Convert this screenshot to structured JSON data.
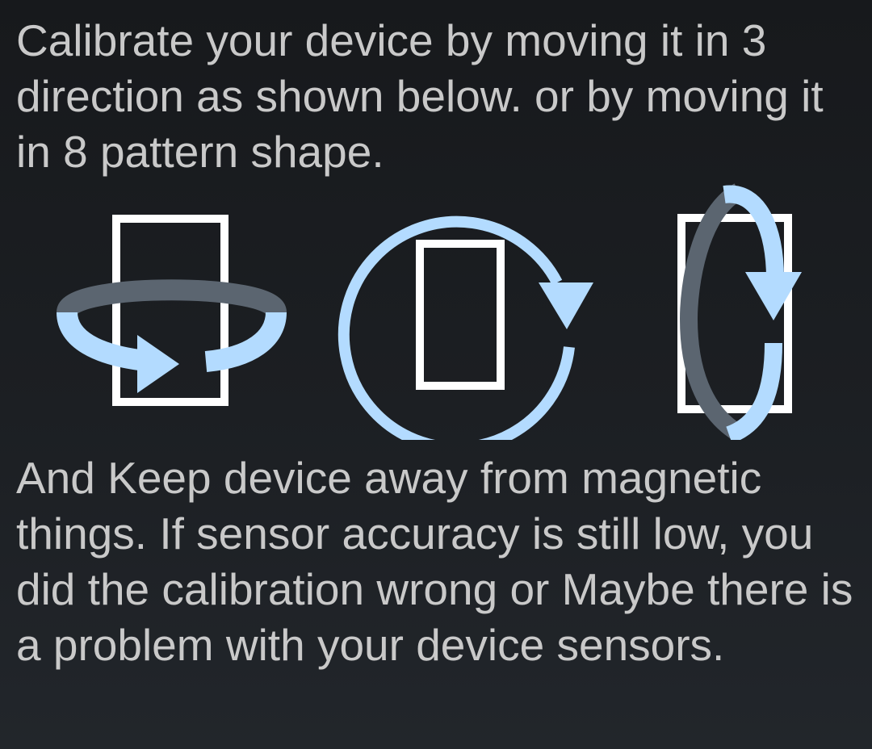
{
  "instructions": {
    "intro": "Calibrate your device by moving it in 3 direction as shown below. or by moving it in 8 pattern shape.",
    "warning": "And Keep device away from magnetic things. If sensor accuracy is still low, you did the calibration wrong or Maybe there is a problem with your device sensors."
  },
  "illustrations": [
    {
      "icon": "phone-rotate-horizontal-icon"
    },
    {
      "icon": "phone-rotate-circular-icon"
    },
    {
      "icon": "phone-rotate-vertical-icon"
    }
  ],
  "colors": {
    "background": "#1b1e22",
    "text": "#c9c9c9",
    "phone_outline": "#ffffff",
    "arrow_front": "#b3dbff",
    "arrow_back": "#5b6570"
  }
}
